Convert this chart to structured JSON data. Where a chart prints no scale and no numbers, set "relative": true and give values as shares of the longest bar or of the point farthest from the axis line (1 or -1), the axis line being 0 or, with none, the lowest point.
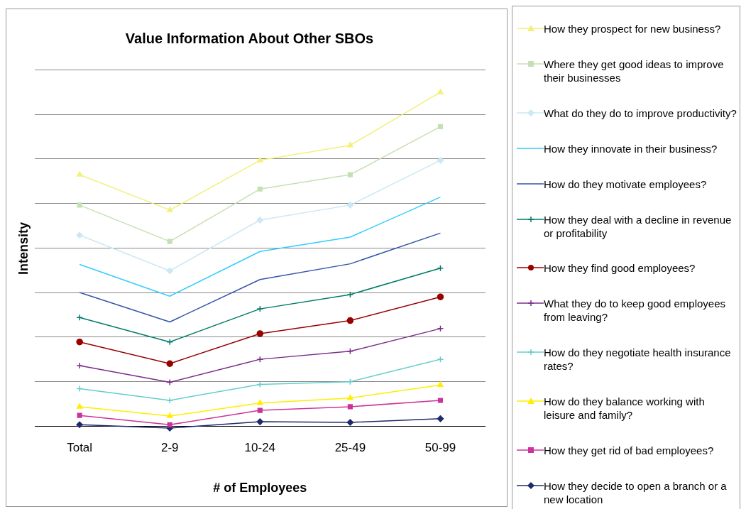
{
  "chart_data": {
    "type": "line",
    "title": "Value Information About Other SBOs",
    "xlabel": "# of Employees",
    "ylabel": "Intensity",
    "relative": true,
    "grid": "y",
    "legend": "right",
    "categories": [
      "Total",
      "2-9",
      "10-24",
      "25-49",
      "50-99"
    ],
    "series": [
      {
        "name": "How they prospect for new business?",
        "color": "#f2f07a",
        "marker": "triangle",
        "values": [
          0.753,
          0.647,
          0.796,
          0.841,
          1
        ]
      },
      {
        "name": "Where they get good ideas to improve their businesses",
        "color": "#c6e0b4",
        "marker": "square",
        "values": [
          0.662,
          0.553,
          0.71,
          0.753,
          0.897
        ]
      },
      {
        "name": "What do they do to improve productivity?",
        "color": "#cce8f4",
        "marker": "diamond",
        "values": [
          0.572,
          0.465,
          0.617,
          0.662,
          0.796
        ]
      },
      {
        "name": "How they innovate in their business?",
        "color": "#33ccff",
        "marker": "none",
        "values": [
          0.484,
          0.389,
          0.523,
          0.566,
          0.686
        ]
      },
      {
        "name": "How do they motivate employees?",
        "color": "#3355aa",
        "marker": "none",
        "values": [
          0.4,
          0.312,
          0.439,
          0.486,
          0.578
        ]
      },
      {
        "name": "How they deal with a decline in revenue or profitability",
        "color": "#007a6a",
        "marker": "cross",
        "values": [
          0.325,
          0.252,
          0.351,
          0.394,
          0.473
        ]
      },
      {
        "name": "How they find good employees?",
        "color": "#990000",
        "marker": "circle",
        "values": [
          0.252,
          0.187,
          0.277,
          0.316,
          0.387
        ]
      },
      {
        "name": "What they do to keep good employees from leaving?",
        "color": "#7b2c8b",
        "marker": "cross",
        "values": [
          0.181,
          0.131,
          0.2,
          0.224,
          0.292
        ]
      },
      {
        "name": "How do they negotiate health insurance rates?",
        "color": "#66cccc",
        "marker": "cross",
        "values": [
          0.112,
          0.077,
          0.125,
          0.133,
          0.2
        ]
      },
      {
        "name": "How do they balance working with leisure and family?",
        "color": "#ffee00",
        "marker": "triangle",
        "values": [
          0.058,
          0.03,
          0.069,
          0.084,
          0.123
        ]
      },
      {
        "name": "How they get rid of bad employees?",
        "color": "#cc3399",
        "marker": "square",
        "values": [
          0.032,
          0.004,
          0.047,
          0.058,
          0.077
        ]
      },
      {
        "name": "How they decide to open a branch or a new location",
        "color": "#1f2a6b",
        "marker": "diamond",
        "values": [
          0.004,
          -0.006,
          0.013,
          0.011,
          0.022
        ]
      }
    ]
  }
}
